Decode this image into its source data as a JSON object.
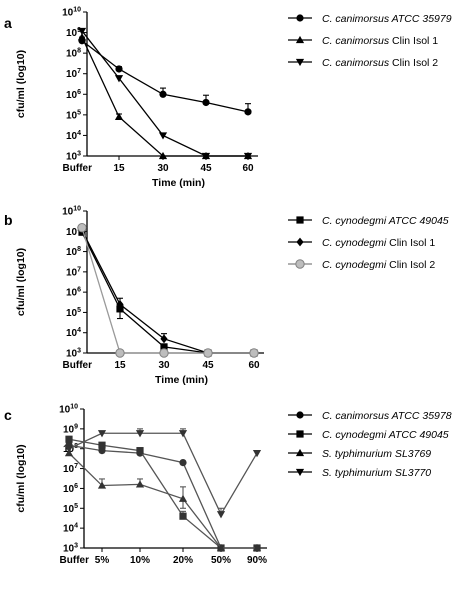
{
  "chart_data": [
    {
      "panel": "a",
      "type": "line",
      "xlabel": "Time (min)",
      "ylabel": "cfu/ml (log10)",
      "categories": [
        "Buffer",
        "15",
        "30",
        "45",
        "60"
      ],
      "yscale": "log",
      "ylim": [
        1000,
        10000000000
      ],
      "yticks": [
        1000,
        10000,
        100000,
        1000000,
        10000000,
        100000000,
        1000000000,
        10000000000
      ],
      "ytick_labels": [
        {
          "base": "10",
          "exp": "3"
        },
        {
          "base": "10",
          "exp": "4"
        },
        {
          "base": "10",
          "exp": "5"
        },
        {
          "base": "10",
          "exp": "6"
        },
        {
          "base": "10",
          "exp": "7"
        },
        {
          "base": "10",
          "exp": "8"
        },
        {
          "base": "10",
          "exp": "9"
        },
        {
          "base": "10",
          "exp": "10"
        }
      ],
      "legend_position": "right",
      "series": [
        {
          "name": "C. canimorsus  ATCC 35979",
          "name_parts": [
            {
              "text": "C. canimorsus  ATCC 35979",
              "italic": true
            }
          ],
          "marker": "circle",
          "color": "#000000",
          "values": [
            400000000,
            17000000,
            1000000,
            400000,
            140000
          ],
          "err_up": [
            600000000,
            22000000,
            2000000,
            900000,
            350000
          ]
        },
        {
          "name": "C. canimorsus  Clin Isol 1",
          "name_parts": [
            {
              "text": "C. canimorsus",
              "italic": true
            },
            {
              "text": "  Clin Isol 1",
              "italic": false
            }
          ],
          "marker": "triangle-up",
          "color": "#000000",
          "values": [
            600000000,
            80000,
            1000,
            1000,
            1000
          ],
          "err_up": [
            null,
            110000,
            null,
            null,
            null
          ]
        },
        {
          "name": "C. canimorsus  Clin Isol 2",
          "name_parts": [
            {
              "text": "C. canimorsus",
              "italic": true
            },
            {
              "text": "  Clin Isol 2",
              "italic": false
            }
          ],
          "marker": "triangle-down",
          "color": "#000000",
          "values": [
            1200000000,
            6000000,
            10000,
            1000,
            1000
          ],
          "err_up": [
            null,
            null,
            null,
            null,
            null
          ]
        }
      ]
    },
    {
      "panel": "b",
      "type": "line",
      "xlabel": "Time (min)",
      "ylabel": "cfu/ml (log10)",
      "categories": [
        "Buffer",
        "15",
        "30",
        "45",
        "60"
      ],
      "yscale": "log",
      "ylim": [
        1000,
        10000000000
      ],
      "yticks": [
        1000,
        10000,
        100000,
        1000000,
        10000000,
        100000000,
        1000000000,
        10000000000
      ],
      "ytick_labels": [
        {
          "base": "10",
          "exp": "3"
        },
        {
          "base": "10",
          "exp": "4"
        },
        {
          "base": "10",
          "exp": "5"
        },
        {
          "base": "10",
          "exp": "6"
        },
        {
          "base": "10",
          "exp": "7"
        },
        {
          "base": "10",
          "exp": "8"
        },
        {
          "base": "10",
          "exp": "9"
        },
        {
          "base": "10",
          "exp": "10"
        }
      ],
      "legend_position": "right",
      "series": [
        {
          "name": "C. cynodegmi  ATCC 49045",
          "name_parts": [
            {
              "text": "C. cynodegmi  ATCC 49045",
              "italic": true
            }
          ],
          "marker": "square",
          "color": "#000000",
          "values": [
            900000000,
            150000,
            2000,
            1000,
            1000
          ],
          "err_up": [
            1500000000,
            500000,
            null,
            null,
            null
          ],
          "err_down": [
            null,
            50000,
            null,
            null,
            null
          ]
        },
        {
          "name": "C. cynodegmi  Clin Isol 1",
          "name_parts": [
            {
              "text": "C. cynodegmi",
              "italic": true
            },
            {
              "text": "  Clin Isol 1",
              "italic": false
            }
          ],
          "marker": "diamond",
          "color": "#000000",
          "values": [
            1100000000,
            250000,
            5000,
            1000,
            1000
          ],
          "err_up": [
            null,
            null,
            9000,
            null,
            null
          ]
        },
        {
          "name": "C. cynodegmi  Clin Isol 2",
          "name_parts": [
            {
              "text": "C. cynodegmi",
              "italic": true
            },
            {
              "text": "  Clin Isol 2",
              "italic": false
            }
          ],
          "marker": "circle-grey",
          "color": "#9a9a9a",
          "values": [
            1500000000,
            1000,
            1000,
            1000,
            1000
          ],
          "err_up": [
            2000000000,
            null,
            null,
            null,
            null
          ]
        }
      ]
    },
    {
      "panel": "c",
      "type": "line",
      "xlabel": "",
      "ylabel": "cfu/ml (log10)",
      "categories": [
        "Buffer",
        "5%",
        "10%",
        "20%",
        "50%",
        "90%"
      ],
      "yscale": "log",
      "ylim": [
        1000,
        10000000000
      ],
      "yticks": [
        1000,
        10000,
        100000,
        1000000,
        10000000,
        100000000,
        1000000000,
        10000000000
      ],
      "ytick_labels": [
        {
          "base": "10",
          "exp": "3"
        },
        {
          "base": "10",
          "exp": "4"
        },
        {
          "base": "10",
          "exp": "5"
        },
        {
          "base": "10",
          "exp": "6"
        },
        {
          "base": "10",
          "exp": "7"
        },
        {
          "base": "10",
          "exp": "8"
        },
        {
          "base": "10",
          "exp": "9"
        },
        {
          "base": "10",
          "exp": "10"
        }
      ],
      "legend_position": "right",
      "series": [
        {
          "name": "C. canimorsus ATCC 35978",
          "name_parts": [
            {
              "text": "C. canimorsus ATCC 35978",
              "italic": true
            }
          ],
          "marker": "circle",
          "color": "#555555",
          "values": [
            150000000,
            80000000,
            60000000,
            20000000,
            1000,
            1000
          ],
          "err_up": [
            200000000,
            null,
            90000000,
            null,
            null,
            null
          ]
        },
        {
          "name": "C. cynodegmi ATCC 49045",
          "name_parts": [
            {
              "text": "C. cynodegmi ATCC 49045",
              "italic": true
            }
          ],
          "marker": "square",
          "color": "#555555",
          "values": [
            300000000,
            150000000,
            80000000,
            40000,
            1000,
            1000
          ],
          "err_up": [
            null,
            null,
            null,
            70000,
            null,
            null
          ]
        },
        {
          "name": "S. typhimurium SL3769",
          "name_parts": [
            {
              "text": "S. typhimurium SL3769",
              "italic": true
            }
          ],
          "marker": "triangle-up",
          "color": "#555555",
          "values": [
            60000000,
            1400000,
            1600000,
            300000,
            1000,
            1000
          ],
          "err_up": [
            null,
            3000000,
            3000000,
            1200000,
            null,
            null
          ],
          "err_down": [
            null,
            null,
            null,
            100000,
            null,
            null
          ]
        },
        {
          "name": "S. typhimurium SL3770",
          "name_parts": [
            {
              "text": "S. typhimurium SL3770",
              "italic": true
            }
          ],
          "marker": "triangle-down",
          "color": "#555555",
          "values": [
            100000000,
            600000000,
            600000000,
            600000000,
            50000,
            1000
          ],
          "err_up": [
            null,
            null,
            1000000000,
            1000000000,
            100000,
            null
          ],
          "err_down": [
            null,
            null,
            null,
            null,
            null,
            null
          ],
          "last_point_override": 60000000
        }
      ]
    }
  ]
}
